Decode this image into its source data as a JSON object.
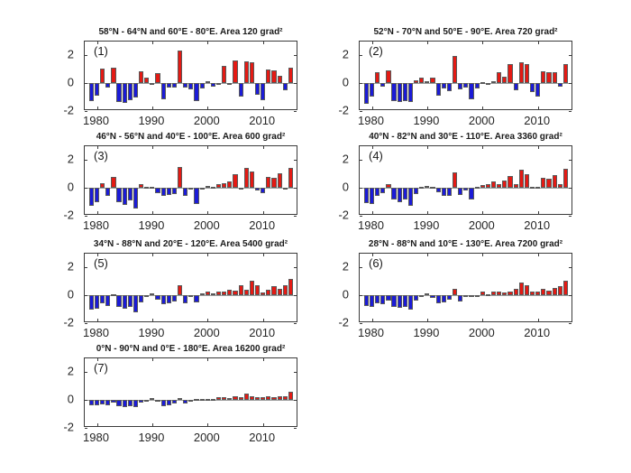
{
  "chart_data": {
    "type": "bar",
    "description": "Seven-panel figure of yearly anomalies; blue bars negative, red bars positive",
    "years": [
      1979,
      1980,
      1981,
      1982,
      1983,
      1984,
      1985,
      1986,
      1987,
      1988,
      1989,
      1990,
      1991,
      1992,
      1993,
      1994,
      1995,
      1996,
      1997,
      1998,
      1999,
      2000,
      2001,
      2002,
      2003,
      2004,
      2005,
      2006,
      2007,
      2008,
      2009,
      2010,
      2011,
      2012,
      2013,
      2014,
      2015
    ],
    "xlim": [
      1977.8,
      2016.4
    ],
    "ylim": [
      -2,
      3
    ],
    "x_ticks": [
      1980,
      1990,
      2000,
      2010
    ],
    "y_ticks": [
      2,
      0,
      -2
    ],
    "grid": false,
    "legend": null,
    "colors": {
      "positive": "#e41a14",
      "negative": "#1b1bd7"
    },
    "panels": [
      {
        "label": "(1)",
        "title": "58°N - 64°N and 60°E - 80°E. Area 120 grad²",
        "values": [
          -1.3,
          -0.9,
          1.05,
          -0.3,
          1.1,
          -1.35,
          -1.4,
          -1.25,
          -1.0,
          0.85,
          0.4,
          -0.15,
          0.7,
          -1.15,
          -0.3,
          -0.3,
          2.35,
          -0.3,
          -0.45,
          -1.3,
          -0.4,
          0.15,
          -0.25,
          -0.15,
          1.25,
          -0.15,
          1.65,
          -0.95,
          1.55,
          1.5,
          -0.85,
          -1.25,
          1.0,
          0.95,
          0.55,
          -0.5,
          1.1
        ]
      },
      {
        "label": "(2)",
        "title": "52°N - 70°N and 50°E - 90°E. Area 720 grad²",
        "values": [
          -1.45,
          -0.95,
          0.8,
          -0.25,
          0.9,
          -1.3,
          -1.35,
          -1.3,
          -1.35,
          0.2,
          0.4,
          0.15,
          0.4,
          -0.9,
          -0.35,
          -0.55,
          1.95,
          -0.45,
          -0.3,
          -1.15,
          -0.35,
          0.08,
          -0.15,
          0.15,
          0.8,
          0.45,
          1.35,
          -0.5,
          1.5,
          1.4,
          -0.65,
          -0.95,
          0.85,
          0.8,
          0.8,
          -0.25,
          1.35
        ]
      },
      {
        "label": "(3)",
        "title": "46°N - 56°N and 40°E - 100°E. Area 600 grad²",
        "values": [
          -1.3,
          -1.05,
          0.35,
          -0.55,
          0.8,
          -1.0,
          -1.25,
          -0.9,
          -1.45,
          0.25,
          0.1,
          0.1,
          -0.35,
          -0.55,
          -0.5,
          -0.45,
          1.5,
          -0.55,
          -0.1,
          -1.15,
          -0.15,
          0.15,
          0.1,
          0.3,
          0.35,
          0.45,
          1.0,
          -0.15,
          1.45,
          1.2,
          -0.2,
          -0.4,
          0.8,
          0.75,
          1.05,
          -0.1,
          1.45
        ]
      },
      {
        "label": "(4)",
        "title": "40°N - 82°N and 30°E - 110°E. Area 3360 grad²",
        "values": [
          -1.1,
          -1.15,
          -0.55,
          -0.35,
          0.3,
          -0.8,
          -1.0,
          -0.85,
          -1.3,
          -0.45,
          0.1,
          0.15,
          0.1,
          -0.3,
          -0.6,
          -0.55,
          1.1,
          -0.5,
          -0.2,
          -0.85,
          0.1,
          0.2,
          0.3,
          0.45,
          0.25,
          0.55,
          0.85,
          0.25,
          1.3,
          1.0,
          0.05,
          0.05,
          0.75,
          0.65,
          0.95,
          0.3,
          1.35
        ]
      },
      {
        "label": "(5)",
        "title": "34°N - 88°N and 20°E - 120°E. Area 5400 grad²",
        "values": [
          -1.05,
          -0.95,
          -0.55,
          -0.75,
          0.05,
          -0.85,
          -0.95,
          -0.85,
          -1.25,
          -0.5,
          -0.05,
          0.15,
          -0.3,
          -0.65,
          -0.6,
          -0.45,
          0.75,
          -0.55,
          -0.15,
          -0.5,
          0.15,
          0.3,
          0.15,
          0.3,
          0.25,
          0.4,
          0.35,
          0.7,
          0.4,
          1.05,
          0.75,
          0.2,
          0.4,
          0.65,
          0.5,
          0.75,
          1.15
        ]
      },
      {
        "label": "(6)",
        "title": "28°N - 88°N and 10°E - 130°E. Area 7200 grad²",
        "values": [
          -0.75,
          -0.8,
          -0.55,
          -0.65,
          -0.35,
          -0.8,
          -0.9,
          -0.85,
          -1.05,
          -0.35,
          -0.1,
          0.15,
          -0.2,
          -0.55,
          -0.5,
          -0.3,
          0.45,
          -0.45,
          -0.1,
          -0.15,
          -0.05,
          0.25,
          0.1,
          0.25,
          0.3,
          0.2,
          0.3,
          0.5,
          0.95,
          0.7,
          0.3,
          0.3,
          0.5,
          0.35,
          0.55,
          0.65,
          1.05
        ]
      },
      {
        "label": "(7)",
        "title": "0°N - 90°N and 0°E - 180°E. Area 16200 grad²",
        "values": [
          -0.35,
          -0.4,
          -0.3,
          -0.35,
          -0.2,
          -0.45,
          -0.5,
          -0.45,
          -0.5,
          -0.2,
          -0.1,
          0.15,
          -0.05,
          -0.45,
          -0.35,
          -0.25,
          0.15,
          -0.25,
          -0.15,
          0.05,
          0.05,
          0.1,
          0.1,
          0.2,
          0.2,
          0.15,
          0.25,
          0.2,
          0.45,
          0.3,
          0.2,
          0.2,
          0.25,
          0.2,
          0.25,
          0.3,
          0.6
        ]
      }
    ]
  }
}
